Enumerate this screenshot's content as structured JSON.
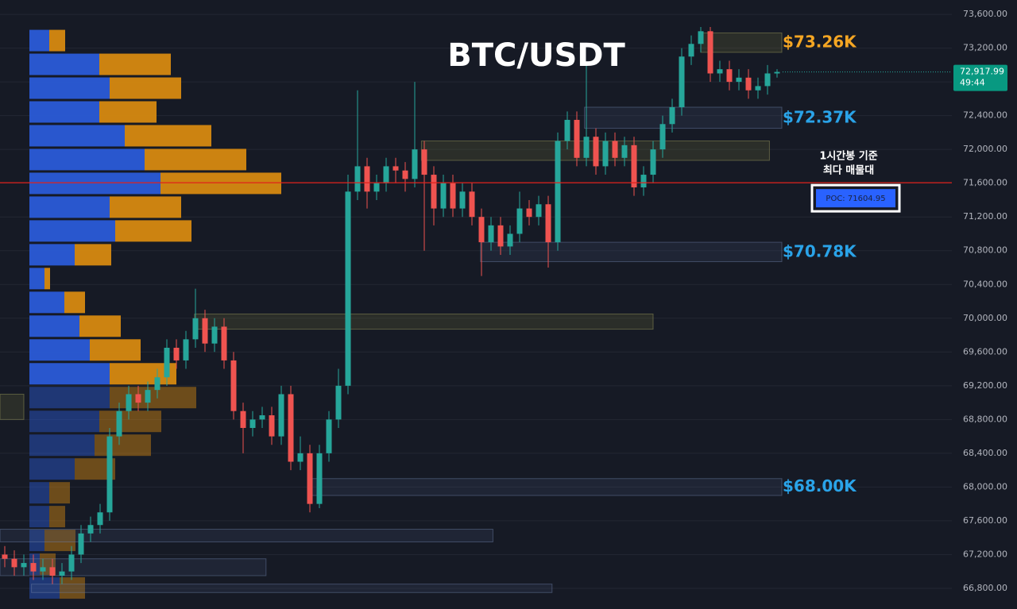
{
  "chart_data": {
    "type": "candlestick",
    "title": "BTC/USDT",
    "ylim": [
      66555,
      73770
    ],
    "yticks": [
      {
        "value": 66800,
        "label": "66,800.00"
      },
      {
        "value": 67200,
        "label": "67,200.00"
      },
      {
        "value": 67600,
        "label": "67,600.00"
      },
      {
        "value": 68000,
        "label": "68,000.00"
      },
      {
        "value": 68400,
        "label": "68,400.00"
      },
      {
        "value": 68800,
        "label": "68,800.00"
      },
      {
        "value": 69200,
        "label": "69,200.00"
      },
      {
        "value": 69600,
        "label": "69,600.00"
      },
      {
        "value": 70000,
        "label": "70,000.00"
      },
      {
        "value": 70400,
        "label": "70,400.00"
      },
      {
        "value": 70800,
        "label": "70,800.00"
      },
      {
        "value": 71200,
        "label": "71,200.00"
      },
      {
        "value": 71600,
        "label": "71,600.00"
      },
      {
        "value": 72000,
        "label": "72,000.00"
      },
      {
        "value": 72400,
        "label": "72,400.00"
      },
      {
        "value": 72800,
        "label": "72,800.00"
      },
      {
        "value": 73200,
        "label": "73,200.00"
      },
      {
        "value": 73600,
        "label": "73,600.00"
      }
    ],
    "grid": true,
    "up_color": "#26a69a",
    "down_color": "#ef5350",
    "open": [
      67200,
      67150,
      67050,
      67100,
      67000,
      67050,
      66950,
      67000,
      67200,
      67450,
      67550,
      67700,
      68600,
      68900,
      69100,
      69000,
      69150,
      69300,
      69650,
      69500,
      69750,
      70000,
      69700,
      69900,
      69500,
      68900,
      68700,
      68800,
      68850,
      68600,
      69100,
      68300,
      68400,
      67800,
      68400,
      68800,
      69200,
      71500,
      71800,
      71500,
      71600,
      71800,
      71750,
      71650,
      72000,
      71700,
      71300,
      71600,
      71300,
      71500,
      71200,
      70900,
      71100,
      70850,
      71000,
      71300,
      71200,
      71350,
      70900,
      72100,
      72350,
      71900,
      72150,
      71800,
      72100,
      71900,
      72050,
      71550,
      71700,
      72000,
      72300,
      72500,
      73100,
      73250,
      73400,
      72900,
      72950,
      72800,
      72850,
      72700,
      72750,
      72900
    ],
    "high": [
      67300,
      67250,
      67200,
      67200,
      67150,
      67150,
      67100,
      67300,
      67550,
      67650,
      67800,
      68700,
      69000,
      69200,
      69200,
      69250,
      69400,
      69750,
      69750,
      69850,
      70350,
      70100,
      70000,
      70000,
      69600,
      69000,
      68900,
      68950,
      68950,
      69200,
      69200,
      68600,
      68500,
      68500,
      68900,
      69400,
      71700,
      72700,
      71900,
      71700,
      71900,
      71900,
      71850,
      72800,
      72100,
      71800,
      71700,
      71700,
      71600,
      71600,
      71300,
      71200,
      71200,
      71100,
      71500,
      71400,
      71450,
      71450,
      72200,
      72450,
      72450,
      73000,
      72250,
      72200,
      72200,
      72150,
      72150,
      71800,
      72100,
      72400,
      72600,
      73200,
      73350,
      73450,
      73450,
      73050,
      73050,
      72950,
      72950,
      72850,
      73000,
      72950
    ],
    "low": [
      67050,
      66950,
      66950,
      66900,
      66900,
      66850,
      66850,
      66900,
      67100,
      67350,
      67450,
      67600,
      68500,
      68800,
      68900,
      68900,
      69050,
      69200,
      69400,
      69400,
      69650,
      69600,
      69600,
      69400,
      68800,
      68400,
      68600,
      68700,
      68500,
      68500,
      68200,
      68200,
      67700,
      67750,
      68300,
      68700,
      69100,
      71400,
      71300,
      71400,
      71500,
      71600,
      71500,
      71550,
      70800,
      71100,
      71200,
      71200,
      71200,
      71100,
      70500,
      70800,
      70750,
      70750,
      70900,
      71100,
      71100,
      70600,
      70800,
      72000,
      71800,
      71800,
      71700,
      71700,
      71800,
      71800,
      71450,
      71450,
      71600,
      71900,
      72200,
      72400,
      73000,
      73150,
      72800,
      72800,
      72700,
      72700,
      72600,
      72600,
      72650,
      72850
    ],
    "close": [
      67150,
      67050,
      67100,
      67000,
      67050,
      66950,
      67000,
      67200,
      67450,
      67550,
      67700,
      68600,
      68900,
      69100,
      69000,
      69150,
      69300,
      69650,
      69500,
      69750,
      70000,
      69700,
      69900,
      69500,
      68900,
      68700,
      68800,
      68850,
      68600,
      69100,
      68300,
      68400,
      67800,
      68400,
      68800,
      69200,
      71500,
      71800,
      71500,
      71600,
      71800,
      71750,
      71650,
      72000,
      71700,
      71300,
      71600,
      71300,
      71500,
      71200,
      70900,
      71100,
      70850,
      71000,
      71300,
      71200,
      71350,
      70900,
      72100,
      72350,
      71900,
      72150,
      71800,
      72100,
      71900,
      72050,
      71550,
      71700,
      72000,
      72300,
      72500,
      73100,
      73250,
      73400,
      72900,
      72950,
      72800,
      72850,
      72700,
      72750,
      72900,
      72917.99
    ],
    "zones": [
      {
        "top": 73380,
        "bottom": 73150,
        "from": 73,
        "to": 81.5,
        "kind": "supply"
      },
      {
        "top": 72500,
        "bottom": 72250,
        "from": 60.8,
        "to": 81.5,
        "kind": "demand"
      },
      {
        "top": 72100,
        "bottom": 71870,
        "from": 43.7,
        "to": 80.2,
        "kind": "supply"
      },
      {
        "top": 70900,
        "bottom": 70670,
        "from": 49.9,
        "to": 81.5,
        "kind": "demand"
      },
      {
        "top": 70050,
        "bottom": 69870,
        "from": 19.9,
        "to": 68,
        "kind": "supply"
      },
      {
        "top": 68100,
        "bottom": 67900,
        "from": 32,
        "to": 81.5,
        "kind": "demand"
      },
      {
        "top": 67500,
        "bottom": 67350,
        "from": -0.5,
        "to": 51.2,
        "kind": "demand"
      },
      {
        "top": 67150,
        "bottom": 66950,
        "from": -0.5,
        "to": 27.4,
        "kind": "demand"
      },
      {
        "top": 66850,
        "bottom": 66750,
        "from": 2.8,
        "to": 57.4,
        "kind": "demand"
      },
      {
        "top": 69100,
        "bottom": 68800,
        "from": -0.5,
        "to": 2,
        "kind": "supply"
      }
    ],
    "volume_profile": {
      "prices": [
        73285,
        73003,
        72721,
        72439,
        72157,
        71875,
        71593,
        71311,
        71029,
        70747,
        70465,
        70183,
        69901,
        69619,
        69337,
        69055,
        68773,
        68491,
        68209,
        67927,
        67645,
        67363,
        67081,
        66799
      ],
      "buy": [
        25,
        88,
        101,
        88,
        120,
        145,
        165,
        101,
        108,
        57,
        19,
        44,
        63,
        76,
        101,
        101,
        88,
        82,
        57,
        25,
        25,
        19,
        13,
        38
      ],
      "sell": [
        20,
        90,
        90,
        72,
        109,
        128,
        152,
        90,
        96,
        46,
        7,
        26,
        52,
        64,
        84,
        109,
        78,
        71,
        51,
        26,
        20,
        39,
        20,
        32
      ],
      "buy_color": "#2a5bd7",
      "sell_color": "#d68910"
    },
    "annotations": [
      {
        "value": 73260,
        "label": "$73.26K",
        "color": "#f5a623"
      },
      {
        "value": 72370,
        "label": "$72.37K",
        "color": "#2aa3e8"
      },
      {
        "value": 70780,
        "label": "$70.78K",
        "color": "#2aa3e8"
      },
      {
        "value": 68000,
        "label": "$68.00K",
        "color": "#2aa3e8"
      }
    ],
    "last_price": {
      "value": 72917.99,
      "label": "72,917.99",
      "countdown": "49:44"
    },
    "poc": {
      "value": 71604.95,
      "label": "POC: 71604.95",
      "note": [
        "1시간봉 기준",
        "최다 매물대"
      ]
    }
  }
}
